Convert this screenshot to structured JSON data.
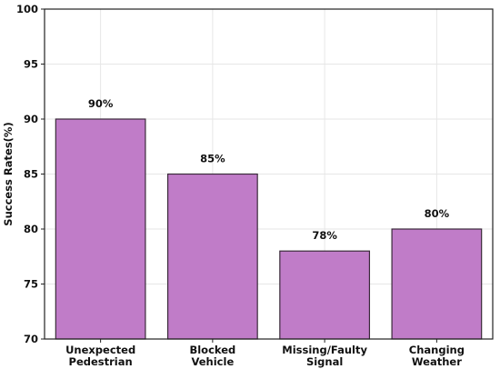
{
  "chart_data": {
    "type": "bar",
    "categories": [
      [
        "Unexpected",
        "Pedestrian"
      ],
      [
        "Blocked",
        "Vehicle"
      ],
      [
        "Missing/Faulty",
        "Signal"
      ],
      [
        "Changing",
        "Weather"
      ]
    ],
    "values": [
      90,
      85,
      78,
      80
    ],
    "data_labels": [
      "90%",
      "85%",
      "78%",
      "80%"
    ],
    "title": "",
    "xlabel": "",
    "ylabel": "Success Rates(%)",
    "ylim": [
      70,
      100
    ],
    "yticks": [
      70,
      75,
      80,
      85,
      90,
      95,
      100
    ],
    "grid": true,
    "bar_color": "#c07cc8",
    "bar_edge_color": "#3a2a3a"
  }
}
